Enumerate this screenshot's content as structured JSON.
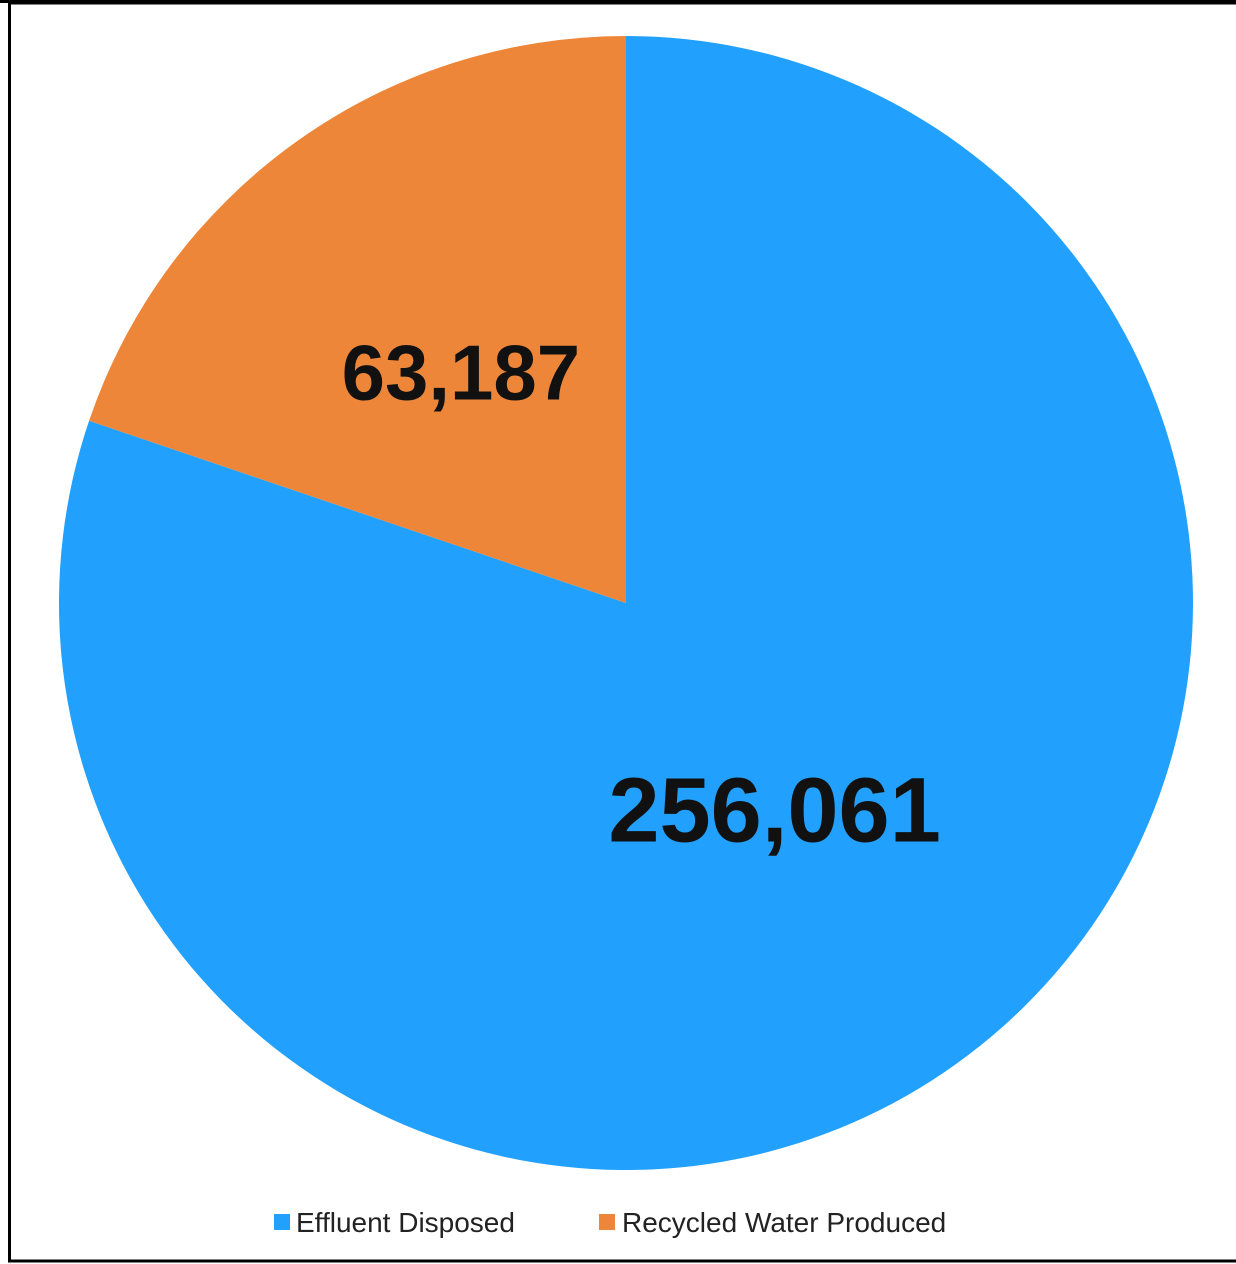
{
  "chart_data": {
    "type": "pie",
    "categories": [
      "Effluent Disposed",
      "Recycled Water Produced"
    ],
    "values": [
      256061,
      63187
    ],
    "value_labels": [
      "256,061",
      "63,187"
    ],
    "colors": [
      "#21a1fd",
      "#ee863a"
    ],
    "start_angle_deg": 0,
    "direction": "clockwise",
    "legend_position": "bottom",
    "legend": [
      {
        "name": "Effluent Disposed",
        "color": "#21a1fd"
      },
      {
        "name": "Recycled Water Produced",
        "color": "#ee863a"
      }
    ]
  }
}
